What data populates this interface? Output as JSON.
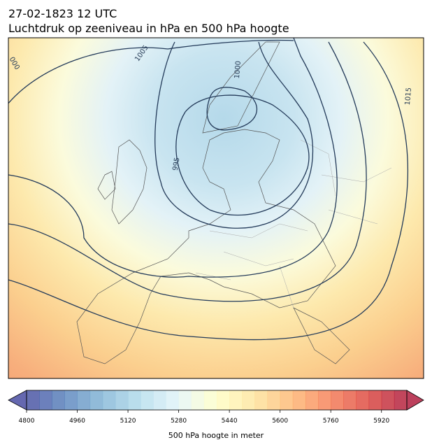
{
  "header": {
    "date": "27-02-1823 12 UTC",
    "title": "Luchtdruk op zeeniveau in hPa en 500 hPa hoogte"
  },
  "map": {
    "contour_labels": [
      "1005",
      "1000",
      "995",
      "1015",
      "000"
    ]
  },
  "colorbar": {
    "label": "500 hPa hoogte in meter",
    "range": [
      4800,
      6000
    ],
    "step": 40,
    "cmap": "RdYlBu_r",
    "extend": "both",
    "ticks": [
      4800,
      4960,
      5120,
      5280,
      5440,
      5600,
      5760,
      5920
    ]
  }
}
